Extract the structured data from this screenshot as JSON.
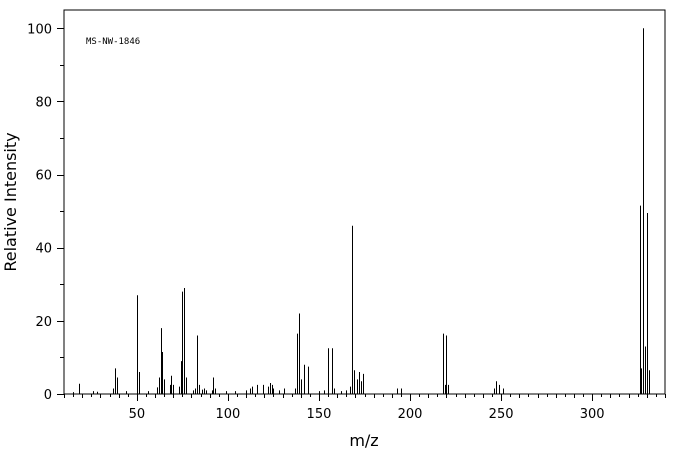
{
  "chart_data": {
    "type": "bar",
    "annotation": "MS-NW-1846",
    "xlabel": "m/z",
    "ylabel": "Relative Intensity",
    "xlim": [
      10,
      340
    ],
    "ylim": [
      0,
      105
    ],
    "x_major_ticks": [
      50,
      100,
      150,
      200,
      250,
      300
    ],
    "y_major_ticks": [
      0,
      20,
      40,
      60,
      80,
      100
    ],
    "grid": false,
    "peaks": [
      {
        "x": 15,
        "y": 0.5
      },
      {
        "x": 18,
        "y": 2.8
      },
      {
        "x": 26,
        "y": 0.8
      },
      {
        "x": 28,
        "y": 0.6
      },
      {
        "x": 37,
        "y": 1.5
      },
      {
        "x": 38,
        "y": 7.0
      },
      {
        "x": 39,
        "y": 4.5
      },
      {
        "x": 44,
        "y": 0.8
      },
      {
        "x": 50,
        "y": 27.0
      },
      {
        "x": 51,
        "y": 6.0
      },
      {
        "x": 56,
        "y": 0.8
      },
      {
        "x": 61,
        "y": 1.8
      },
      {
        "x": 62,
        "y": 4.5
      },
      {
        "x": 63,
        "y": 18.0
      },
      {
        "x": 64,
        "y": 11.5
      },
      {
        "x": 65,
        "y": 4.0
      },
      {
        "x": 68,
        "y": 2.5
      },
      {
        "x": 69,
        "y": 5.0
      },
      {
        "x": 70,
        "y": 2.5
      },
      {
        "x": 73,
        "y": 2.0
      },
      {
        "x": 74,
        "y": 9.0
      },
      {
        "x": 75,
        "y": 28.0
      },
      {
        "x": 76,
        "y": 29.0
      },
      {
        "x": 77,
        "y": 4.5
      },
      {
        "x": 81,
        "y": 1.0
      },
      {
        "x": 82,
        "y": 1.5
      },
      {
        "x": 83,
        "y": 16.0
      },
      {
        "x": 84,
        "y": 2.5
      },
      {
        "x": 86,
        "y": 1.2
      },
      {
        "x": 87,
        "y": 1.5
      },
      {
        "x": 88,
        "y": 1.0
      },
      {
        "x": 91,
        "y": 1.0
      },
      {
        "x": 92,
        "y": 4.5
      },
      {
        "x": 93,
        "y": 1.5
      },
      {
        "x": 99,
        "y": 0.8
      },
      {
        "x": 104,
        "y": 0.8
      },
      {
        "x": 110,
        "y": 1.0
      },
      {
        "x": 112,
        "y": 1.5
      },
      {
        "x": 113,
        "y": 2.0
      },
      {
        "x": 116,
        "y": 2.5
      },
      {
        "x": 119,
        "y": 2.5
      },
      {
        "x": 122,
        "y": 2.0
      },
      {
        "x": 123,
        "y": 3.0
      },
      {
        "x": 124,
        "y": 2.5
      },
      {
        "x": 125,
        "y": 1.5
      },
      {
        "x": 128,
        "y": 1.0
      },
      {
        "x": 131,
        "y": 1.5
      },
      {
        "x": 137,
        "y": 1.5
      },
      {
        "x": 138,
        "y": 16.5
      },
      {
        "x": 139,
        "y": 22.0
      },
      {
        "x": 140,
        "y": 4.0
      },
      {
        "x": 142,
        "y": 8.0
      },
      {
        "x": 144,
        "y": 7.5
      },
      {
        "x": 150,
        "y": 0.8
      },
      {
        "x": 153,
        "y": 1.0
      },
      {
        "x": 155,
        "y": 12.5
      },
      {
        "x": 157,
        "y": 12.5
      },
      {
        "x": 158,
        "y": 1.5
      },
      {
        "x": 162,
        "y": 0.8
      },
      {
        "x": 165,
        "y": 1.0
      },
      {
        "x": 167,
        "y": 2.0
      },
      {
        "x": 168,
        "y": 46.0
      },
      {
        "x": 169,
        "y": 6.5
      },
      {
        "x": 171,
        "y": 4.0
      },
      {
        "x": 172,
        "y": 6.0
      },
      {
        "x": 173,
        "y": 3.5
      },
      {
        "x": 174,
        "y": 5.5
      },
      {
        "x": 193,
        "y": 1.5
      },
      {
        "x": 195,
        "y": 1.5
      },
      {
        "x": 218,
        "y": 16.5
      },
      {
        "x": 219,
        "y": 2.5
      },
      {
        "x": 220,
        "y": 16.0
      },
      {
        "x": 221,
        "y": 2.5
      },
      {
        "x": 246,
        "y": 1.5
      },
      {
        "x": 247,
        "y": 3.5
      },
      {
        "x": 249,
        "y": 2.5
      },
      {
        "x": 251,
        "y": 1.5
      },
      {
        "x": 326,
        "y": 51.5
      },
      {
        "x": 327,
        "y": 7.0
      },
      {
        "x": 328,
        "y": 100.0
      },
      {
        "x": 329,
        "y": 13.0
      },
      {
        "x": 330,
        "y": 49.5
      },
      {
        "x": 331,
        "y": 6.5
      }
    ]
  }
}
